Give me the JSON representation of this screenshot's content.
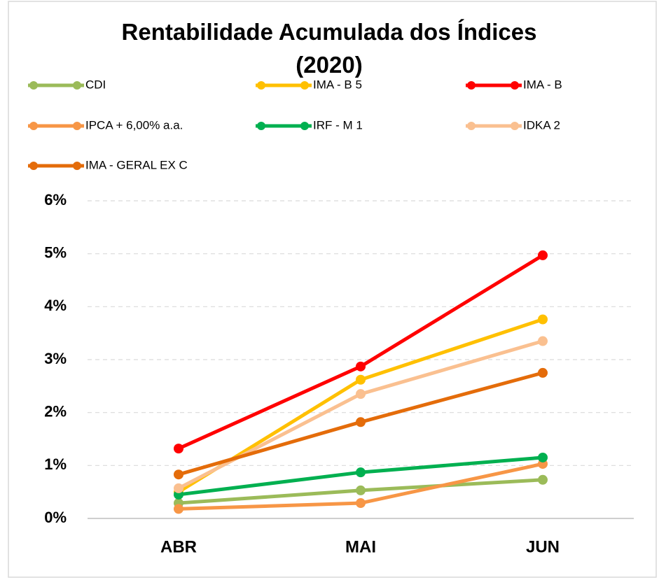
{
  "chart_data": {
    "type": "line",
    "title": "Rentabilidade Acumulada dos Índices (2020)",
    "categories": [
      "ABR",
      "MAI",
      "JUN"
    ],
    "series": [
      {
        "name": "CDI",
        "color": "#9bbb59",
        "values": [
          0.29,
          0.53,
          0.73
        ]
      },
      {
        "name": "IMA - B 5",
        "color": "#ffc000",
        "values": [
          0.5,
          2.62,
          3.76
        ]
      },
      {
        "name": "IMA - B",
        "color": "#ff0000",
        "values": [
          1.32,
          2.87,
          4.97
        ]
      },
      {
        "name": "IPCA + 6,00% a.a.",
        "color": "#f79646",
        "values": [
          0.18,
          0.29,
          1.03
        ]
      },
      {
        "name": "IRF - M 1",
        "color": "#00b050",
        "values": [
          0.45,
          0.87,
          1.15
        ]
      },
      {
        "name": "IDKA 2",
        "color": "#fac090",
        "values": [
          0.57,
          2.35,
          3.35
        ]
      },
      {
        "name": "IMA - GERAL EX C",
        "color": "#e46c0a",
        "values": [
          0.83,
          1.82,
          2.75
        ]
      }
    ],
    "ylim": [
      0,
      6
    ],
    "yticks": [
      {
        "value": 0,
        "label": "0%"
      },
      {
        "value": 1,
        "label": "1%"
      },
      {
        "value": 2,
        "label": "2%"
      },
      {
        "value": 3,
        "label": "3%"
      },
      {
        "value": 4,
        "label": "4%"
      },
      {
        "value": 5,
        "label": "5%"
      },
      {
        "value": 6,
        "label": "6%"
      }
    ],
    "grid": true,
    "legend": "top"
  }
}
